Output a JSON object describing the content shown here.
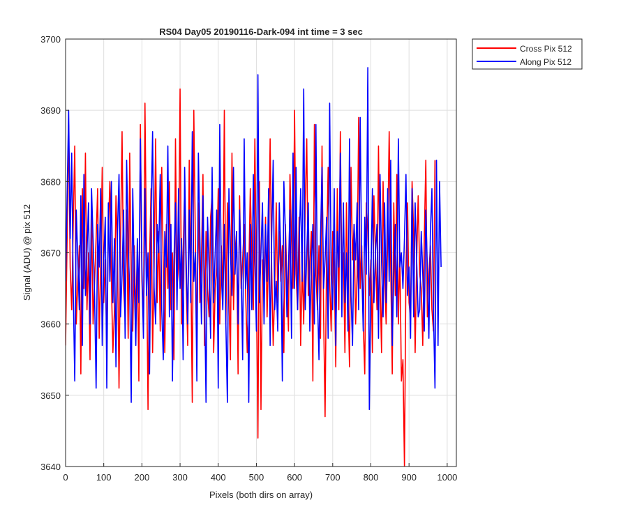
{
  "chart_data": {
    "type": "line",
    "title": "RS04 Day05 20190116-Dark-094 int time = 3 sec",
    "xlabel": "Pixels (both dirs on array)",
    "ylabel": "Signal (ADU) @ pix 512",
    "xlim": [
      0,
      1024
    ],
    "ylim": [
      3640,
      3700
    ],
    "xticks": [
      0,
      100,
      200,
      300,
      400,
      500,
      600,
      700,
      800,
      900,
      1000
    ],
    "yticks": [
      3640,
      3650,
      3660,
      3670,
      3680,
      3690,
      3700
    ],
    "grid": true,
    "legend_position": "outside-top-right",
    "series": [
      {
        "name": "Cross Pix 512",
        "color": "#ff0000",
        "sampling_step": 4,
        "values": [
          3657,
          3672,
          3688,
          3668,
          3662,
          3674,
          3685,
          3660,
          3666,
          3671,
          3653,
          3679,
          3665,
          3684,
          3662,
          3670,
          3655,
          3676,
          3660,
          3666,
          3672,
          3679,
          3658,
          3668,
          3682,
          3663,
          3669,
          3657,
          3673,
          3680,
          3666,
          3656,
          3662,
          3678,
          3670,
          3651,
          3672,
          3687,
          3665,
          3661,
          3676,
          3658,
          3684,
          3667,
          3659,
          3671,
          3661,
          3670,
          3652,
          3688,
          3666,
          3660,
          3691,
          3670,
          3648,
          3669,
          3679,
          3656,
          3668,
          3686,
          3663,
          3673,
          3659,
          3682,
          3668,
          3656,
          3674,
          3665,
          3680,
          3662,
          3670,
          3655,
          3686,
          3665,
          3668,
          3693,
          3660,
          3670,
          3679,
          3666,
          3657,
          3683,
          3669,
          3649,
          3690,
          3672,
          3658,
          3677,
          3663,
          3669,
          3681,
          3657,
          3673,
          3665,
          3661,
          3675,
          3678,
          3656,
          3665,
          3668,
          3679,
          3660,
          3671,
          3664,
          3690,
          3660,
          3677,
          3664,
          3655,
          3684,
          3662,
          3670,
          3673,
          3653,
          3678,
          3665,
          3669,
          3674,
          3664,
          3656,
          3667,
          3679,
          3670,
          3662,
          3686,
          3666,
          3644,
          3680,
          3648,
          3669,
          3666,
          3675,
          3661,
          3670,
          3686,
          3668,
          3657,
          3665,
          3677,
          3663,
          3673,
          3666,
          3671,
          3656,
          3674,
          3666,
          3659,
          3681,
          3672,
          3665,
          3690,
          3667,
          3662,
          3675,
          3657,
          3668,
          3660,
          3677,
          3686,
          3664,
          3668,
          3673,
          3652,
          3688,
          3667,
          3662,
          3671,
          3658,
          3685,
          3662,
          3647,
          3670,
          3682,
          3666,
          3659,
          3673,
          3668,
          3654,
          3679,
          3662,
          3687,
          3666,
          3670,
          3656,
          3677,
          3664,
          3654,
          3682,
          3669,
          3674,
          3660,
          3667,
          3689,
          3665,
          3671,
          3660,
          3653,
          3677,
          3673,
          3664,
          3669,
          3656,
          3678,
          3670,
          3662,
          3685,
          3666,
          3656,
          3680,
          3667,
          3660,
          3672,
          3687,
          3668,
          3653,
          3677,
          3664,
          3681,
          3660,
          3670,
          3652,
          3655,
          3640,
          3668,
          3677,
          3663,
          3661,
          3680,
          3673,
          3656,
          3669,
          3678,
          3667,
          3665,
          3657,
          3672,
          3683,
          3661,
          3667,
          3671,
          3662,
          3659,
          3683
        ]
      },
      {
        "name": "Along Pix 512",
        "color": "#0000ff",
        "sampling_step": 4,
        "values": [
          3666,
          3678,
          3690,
          3672,
          3684,
          3665,
          3652,
          3676,
          3669,
          3662,
          3678,
          3657,
          3681,
          3664,
          3670,
          3677,
          3660,
          3679,
          3672,
          3664,
          3651,
          3674,
          3668,
          3679,
          3657,
          3669,
          3675,
          3651,
          3677,
          3666,
          3680,
          3663,
          3672,
          3654,
          3673,
          3681,
          3661,
          3667,
          3676,
          3658,
          3683,
          3671,
          3665,
          3649,
          3679,
          3666,
          3657,
          3672,
          3663,
          3686,
          3668,
          3658,
          3679,
          3664,
          3670,
          3653,
          3675,
          3687,
          3665,
          3660,
          3674,
          3670,
          3681,
          3662,
          3655,
          3673,
          3668,
          3685,
          3661,
          3674,
          3652,
          3669,
          3677,
          3662,
          3679,
          3665,
          3672,
          3655,
          3682,
          3669,
          3660,
          3676,
          3663,
          3687,
          3666,
          3670,
          3652,
          3684,
          3672,
          3660,
          3678,
          3665,
          3649,
          3675,
          3668,
          3658,
          3682,
          3663,
          3670,
          3676,
          3651,
          3688,
          3667,
          3662,
          3674,
          3660,
          3649,
          3679,
          3670,
          3664,
          3682,
          3667,
          3673,
          3660,
          3676,
          3668,
          3655,
          3686,
          3665,
          3670,
          3649,
          3674,
          3662,
          3681,
          3669,
          3659,
          3695,
          3663,
          3670,
          3677,
          3660,
          3674,
          3666,
          3679,
          3657,
          3672,
          3683,
          3662,
          3666,
          3659,
          3677,
          3670,
          3652,
          3680,
          3673,
          3661,
          3668,
          3676,
          3658,
          3684,
          3665,
          3682,
          3662,
          3671,
          3679,
          3666,
          3693,
          3662,
          3670,
          3677,
          3659,
          3668,
          3674,
          3660,
          3688,
          3664,
          3655,
          3672,
          3682,
          3665,
          3669,
          3675,
          3658,
          3691,
          3667,
          3662,
          3679,
          3657,
          3673,
          3668,
          3684,
          3661,
          3677,
          3663,
          3670,
          3659,
          3686,
          3664,
          3657,
          3674,
          3669,
          3677,
          3662,
          3689,
          3668,
          3659,
          3675,
          3667,
          3696,
          3648,
          3666,
          3679,
          3663,
          3670,
          3674,
          3658,
          3681,
          3669,
          3661,
          3677,
          3663,
          3679,
          3666,
          3683,
          3657,
          3667,
          3674,
          3661,
          3686,
          3668,
          3670,
          3665,
          3672,
          3681,
          3664,
          3668,
          3658,
          3679,
          3661,
          3677,
          3669,
          3661,
          3662,
          3673,
          3667,
          3659,
          3676,
          3668,
          3658,
          3673,
          3679,
          3662,
          3651,
          3683,
          3657,
          3680,
          3668
        ]
      }
    ]
  }
}
